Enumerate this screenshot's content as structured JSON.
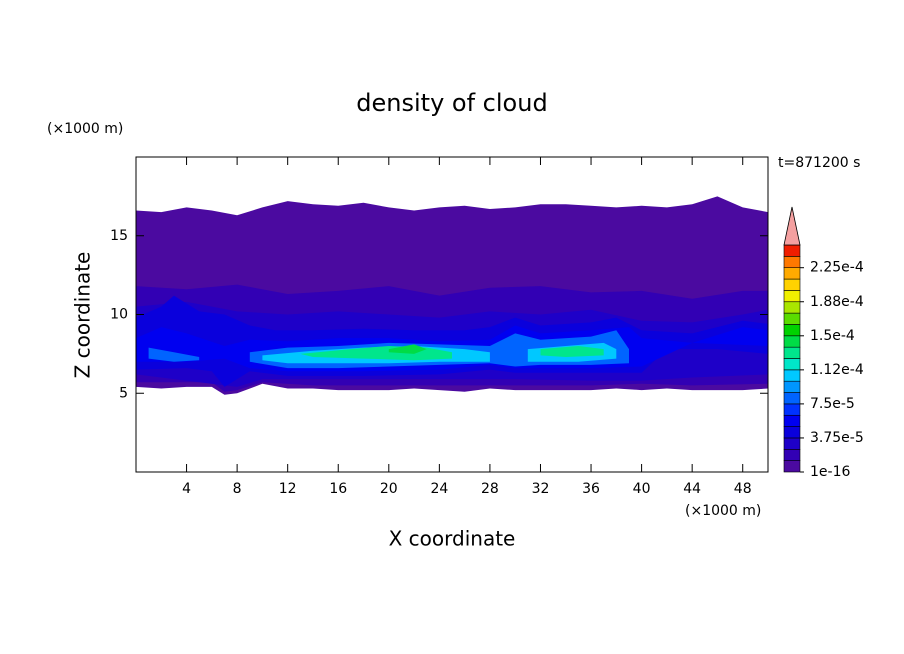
{
  "chart_data": {
    "type": "contour",
    "title": "density of cloud",
    "x_label": "X coordinate",
    "y_label": "Z coordinate",
    "x_unit": "(×1000 m)",
    "y_unit": "(×1000 m)",
    "time_label": "t=871200 s",
    "xlim": [
      0,
      50
    ],
    "ylim": [
      0,
      20
    ],
    "xticks": [
      4,
      8,
      12,
      16,
      20,
      24,
      28,
      32,
      36,
      40,
      44,
      48
    ],
    "yticks": [
      5,
      10,
      15
    ],
    "colorbar": {
      "lim": [
        0,
        0.00025
      ],
      "colors": [
        "#4b0aa0",
        "#3200b4",
        "#1e00c8",
        "#0a00dc",
        "#0000f0",
        "#0032ff",
        "#0064ff",
        "#0096ff",
        "#00c8ff",
        "#00e6c8",
        "#00e68c",
        "#00dc46",
        "#00d200",
        "#5adc00",
        "#aae600",
        "#f0f000",
        "#ffd200",
        "#ffaa00",
        "#ff7800",
        "#f01e00"
      ],
      "over_color": "#f4a0a0",
      "ticks": [
        {
          "value": 1e-16,
          "label": "1e-16"
        },
        {
          "value": 3.75e-05,
          "label": "3.75e-5"
        },
        {
          "value": 7.5e-05,
          "label": "7.5e-5"
        },
        {
          "value": 0.0001125,
          "label": "1.12e-4"
        },
        {
          "value": 0.00015,
          "label": "1.5e-4"
        },
        {
          "value": 0.0001875,
          "label": "1.88e-4"
        },
        {
          "value": 0.000225,
          "label": "2.25e-4"
        }
      ]
    },
    "regions": [
      {
        "value": 1e-16,
        "x": [
          0,
          2,
          4,
          6,
          8,
          10,
          12,
          14,
          16,
          18,
          20,
          22,
          24,
          26,
          28,
          30,
          32,
          34,
          36,
          38,
          40,
          42,
          44,
          46,
          48,
          50,
          50,
          48,
          46,
          44,
          42,
          40,
          38,
          36,
          34,
          32,
          30,
          28,
          26,
          24,
          22,
          20,
          18,
          16,
          14,
          12,
          10,
          8,
          7,
          6,
          4,
          2,
          0
        ],
        "z": [
          16.6,
          16.5,
          16.8,
          16.6,
          16.3,
          16.8,
          17.2,
          17.0,
          16.9,
          17.1,
          16.8,
          16.6,
          16.8,
          16.9,
          16.7,
          16.8,
          17.0,
          17.0,
          16.9,
          16.8,
          16.9,
          16.8,
          17.0,
          17.5,
          16.8,
          16.5,
          5.3,
          5.2,
          5.2,
          5.2,
          5.3,
          5.2,
          5.3,
          5.2,
          5.2,
          5.2,
          5.2,
          5.3,
          5.1,
          5.2,
          5.3,
          5.2,
          5.2,
          5.2,
          5.3,
          5.3,
          5.6,
          5.0,
          4.9,
          5.4,
          5.4,
          5.3,
          5.4
        ]
      },
      {
        "value": 1.25e-05,
        "x": [
          0,
          4,
          8,
          12,
          16,
          20,
          24,
          28,
          32,
          36,
          40,
          44,
          48,
          50,
          50,
          44,
          40,
          36,
          30,
          24,
          20,
          14,
          10,
          8,
          7,
          6,
          0
        ],
        "z": [
          11.8,
          11.6,
          11.9,
          11.3,
          11.5,
          11.8,
          11.2,
          11.7,
          11.8,
          11.4,
          11.5,
          11.0,
          11.5,
          11.5,
          5.6,
          5.5,
          5.6,
          5.5,
          5.5,
          5.5,
          5.5,
          5.5,
          5.7,
          5.2,
          5.1,
          5.7,
          5.7
        ]
      },
      {
        "value": 2.5e-05,
        "x": [
          0,
          4,
          8,
          12,
          16,
          20,
          24,
          28,
          32,
          36,
          40,
          44,
          48,
          50,
          50,
          44,
          40,
          36,
          30,
          24,
          20,
          14,
          10,
          8,
          7,
          0
        ],
        "z": [
          10.5,
          10.8,
          10.2,
          10.0,
          10.2,
          10.0,
          9.8,
          10.2,
          10.0,
          10.3,
          9.6,
          9.5,
          10.0,
          10.3,
          6.2,
          6.0,
          5.8,
          5.8,
          5.9,
          5.9,
          5.9,
          5.9,
          5.9,
          5.4,
          5.5,
          6.2
        ]
      },
      {
        "value": 3.75e-05,
        "x": [
          0,
          2,
          3,
          5,
          7,
          9,
          11,
          14,
          18,
          22,
          26,
          28,
          30,
          32,
          36,
          38,
          40,
          44,
          48,
          50,
          50,
          46,
          42,
          40,
          36,
          30,
          28,
          24,
          18,
          12,
          9,
          8,
          7,
          6,
          4,
          0
        ],
        "z": [
          9.8,
          10.5,
          11.2,
          10.2,
          10.0,
          9.3,
          9.0,
          9.0,
          9.1,
          9.0,
          9.0,
          9.2,
          9.8,
          9.3,
          9.5,
          9.8,
          9.0,
          8.8,
          9.6,
          9.4,
          7.5,
          7.8,
          7.8,
          6.3,
          6.3,
          6.3,
          6.5,
          6.2,
          6.1,
          6.1,
          6.4,
          5.9,
          5.4,
          6.4,
          6.6,
          6.5
        ]
      },
      {
        "value": 5e-05,
        "x": [
          0,
          2,
          4,
          7,
          9,
          12,
          16,
          20,
          24,
          28,
          30,
          32,
          36,
          39,
          40,
          44,
          48,
          50,
          50,
          44,
          40,
          36,
          30,
          28,
          24,
          18,
          12,
          9,
          7,
          4,
          0
        ],
        "z": [
          8.5,
          9.2,
          8.8,
          8.0,
          8.4,
          8.3,
          8.5,
          8.5,
          8.3,
          8.4,
          9.3,
          8.8,
          9.0,
          9.2,
          8.5,
          8.2,
          9.2,
          9.0,
          8.0,
          8.2,
          6.7,
          6.6,
          6.6,
          6.8,
          6.5,
          6.4,
          6.4,
          6.6,
          7.2,
          7.0,
          7.0
        ]
      },
      {
        "value": 7.5e-05,
        "x": [
          1,
          3,
          5,
          5,
          3,
          1
        ],
        "z": [
          7.9,
          7.6,
          7.3,
          7.1,
          7.0,
          7.2
        ]
      },
      {
        "value": 7.5e-05,
        "x": [
          9,
          12,
          16,
          20,
          24,
          28,
          30,
          32,
          36,
          38,
          39,
          39,
          36,
          32,
          30,
          28,
          24,
          20,
          16,
          12,
          9
        ],
        "z": [
          7.6,
          7.9,
          8.0,
          8.2,
          8.1,
          8.0,
          8.8,
          8.4,
          8.6,
          9.0,
          7.8,
          6.9,
          6.8,
          6.8,
          6.7,
          6.9,
          6.8,
          6.7,
          6.6,
          6.6,
          7.0
        ]
      },
      {
        "value": 0.0001,
        "x": [
          10,
          14,
          18,
          22,
          26,
          28,
          28,
          24,
          20,
          16,
          12,
          10
        ],
        "z": [
          7.4,
          7.7,
          7.9,
          8.0,
          7.8,
          7.6,
          7.0,
          7.0,
          6.9,
          6.9,
          6.9,
          7.1
        ]
      },
      {
        "value": 0.0001,
        "x": [
          31,
          34,
          37,
          38,
          38,
          35,
          31
        ],
        "z": [
          7.8,
          8.0,
          8.2,
          7.8,
          7.2,
          7.0,
          7.0
        ]
      },
      {
        "value": 0.000125,
        "x": [
          13,
          17,
          20,
          23,
          25,
          25,
          22,
          18,
          14
        ],
        "z": [
          7.5,
          7.8,
          8.0,
          7.9,
          7.6,
          7.2,
          7.1,
          7.2,
          7.3
        ]
      },
      {
        "value": 0.000125,
        "x": [
          32,
          35,
          37,
          37,
          34,
          32
        ],
        "z": [
          7.8,
          8.0,
          7.8,
          7.4,
          7.3,
          7.4
        ]
      },
      {
        "value": 0.0001375,
        "x": [
          20,
          22,
          23,
          22,
          20
        ],
        "z": [
          7.8,
          8.1,
          7.8,
          7.5,
          7.6
        ]
      }
    ]
  }
}
